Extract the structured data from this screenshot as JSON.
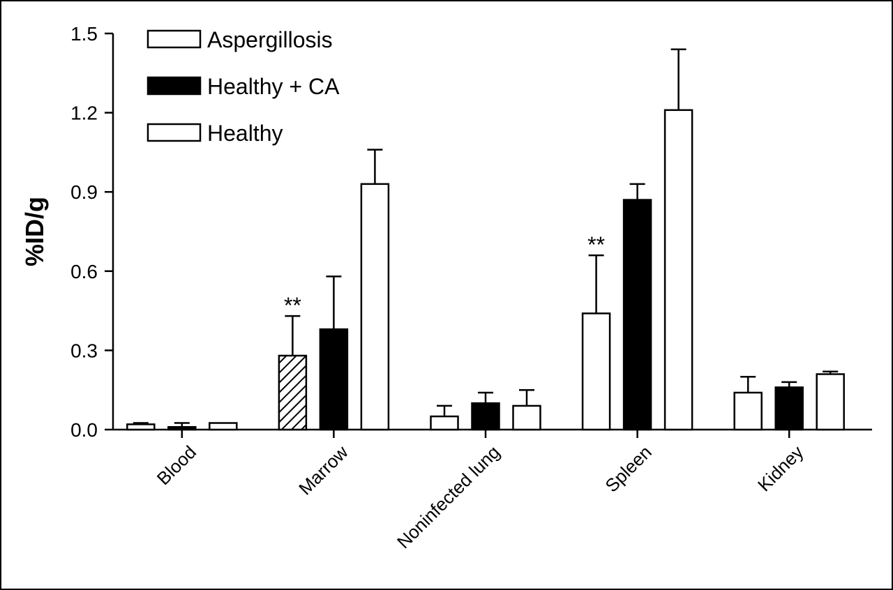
{
  "chart_data": {
    "type": "bar",
    "title": "",
    "xlabel": "",
    "ylabel": "%ID/g",
    "ylim": [
      0,
      1.5
    ],
    "yticks": [
      "0.0",
      "0.3",
      "0.6",
      "0.9",
      "1.2",
      "1.5"
    ],
    "ytick_values": [
      0.0,
      0.3,
      0.6,
      0.9,
      1.2,
      1.5
    ],
    "categories": [
      "Blood",
      "Marrow",
      "Noninfected lung",
      "Spleen",
      "Kidney"
    ],
    "legend_position": "top-left",
    "grid": false,
    "series": [
      {
        "name": "Aspergillosis",
        "fill": "#ffffff",
        "values": [
          0.02,
          0.28,
          0.05,
          0.44,
          0.14
        ],
        "errors": [
          0.005,
          0.15,
          0.04,
          0.22,
          0.06
        ],
        "fill_overrides": {
          "1": "hatched"
        }
      },
      {
        "name": "Healthy + CA",
        "fill": "#000000",
        "values": [
          0.01,
          0.38,
          0.1,
          0.87,
          0.16
        ],
        "errors": [
          0.015,
          0.2,
          0.04,
          0.06,
          0.02
        ]
      },
      {
        "name": "Healthy",
        "fill": "#ffffff",
        "values": [
          0.025,
          0.93,
          0.09,
          1.21,
          0.21
        ],
        "errors": [
          0.0,
          0.13,
          0.06,
          0.23,
          0.01
        ]
      }
    ],
    "annotations": [
      {
        "category_index": 1,
        "series_index": 0,
        "text": "**"
      },
      {
        "category_index": 3,
        "series_index": 0,
        "text": "**"
      }
    ]
  }
}
